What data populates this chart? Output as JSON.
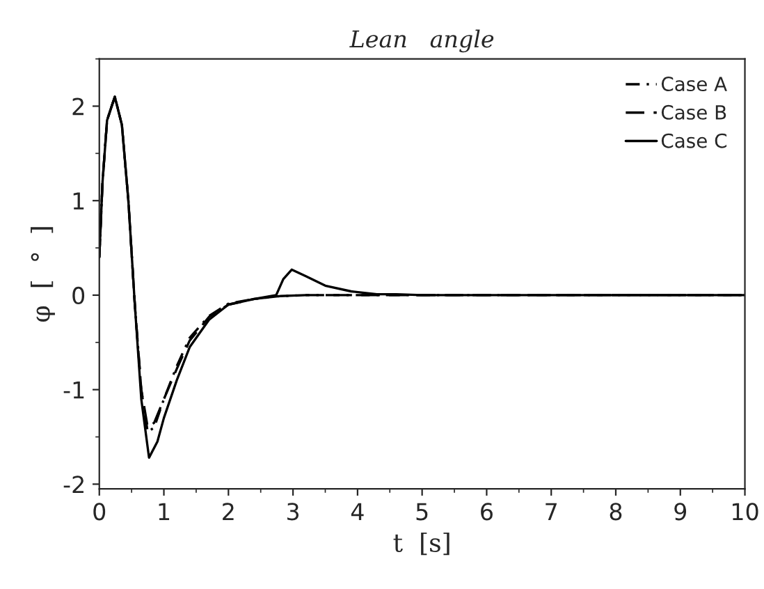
{
  "chart_data": {
    "type": "line",
    "title": "Lean   angle",
    "xlabel": "t  [s]",
    "ylabel": "φ  [  °  ]",
    "xlim": [
      0,
      10
    ],
    "ylim": [
      -2.05,
      2.5
    ],
    "xticks": [
      0,
      1,
      2,
      3,
      4,
      5,
      6,
      7,
      8,
      9,
      10
    ],
    "yticks": [
      -2,
      -1,
      0,
      1,
      2
    ],
    "grid": false,
    "legend": "top right",
    "marker": "none",
    "series": [
      {
        "name": "Case A",
        "color": "#000000",
        "line_style": "dashdot",
        "x": [
          0,
          0.05,
          0.12,
          0.24,
          0.35,
          0.45,
          0.55,
          0.65,
          0.75,
          0.85,
          1.0,
          1.2,
          1.4,
          1.7,
          2.0,
          2.4,
          2.8,
          3.2,
          4,
          5,
          6,
          7,
          8,
          9,
          10
        ],
        "values": [
          0.4,
          1.2,
          1.85,
          2.1,
          1.8,
          1.0,
          -0.1,
          -1.0,
          -1.45,
          -1.4,
          -1.1,
          -0.75,
          -0.45,
          -0.22,
          -0.09,
          -0.04,
          -0.01,
          0,
          0,
          0,
          0,
          0,
          0,
          0,
          0
        ]
      },
      {
        "name": "Case B",
        "color": "#000000",
        "line_style": "dashed",
        "x": [
          0,
          0.05,
          0.12,
          0.24,
          0.35,
          0.45,
          0.55,
          0.65,
          0.75,
          0.85,
          1.0,
          1.2,
          1.4,
          1.7,
          2.0,
          2.4,
          2.8,
          3.2,
          4,
          5,
          6,
          7,
          8,
          9,
          10
        ],
        "values": [
          0.4,
          1.2,
          1.85,
          2.1,
          1.8,
          1.0,
          -0.1,
          -1.0,
          -1.4,
          -1.35,
          -1.1,
          -0.78,
          -0.48,
          -0.23,
          -0.1,
          -0.04,
          -0.01,
          0,
          0,
          0,
          0,
          0,
          0,
          0,
          0
        ]
      },
      {
        "name": "Case C",
        "color": "#000000",
        "line_style": "solid",
        "x": [
          0,
          0.05,
          0.12,
          0.24,
          0.35,
          0.45,
          0.55,
          0.65,
          0.77,
          0.9,
          1.0,
          1.2,
          1.4,
          1.7,
          2.0,
          2.4,
          2.74,
          2.85,
          2.98,
          3.2,
          3.5,
          3.9,
          4.3,
          4.6,
          5,
          6,
          7,
          8,
          9,
          10
        ],
        "values": [
          0.4,
          1.2,
          1.85,
          2.1,
          1.8,
          1.0,
          -0.1,
          -1.1,
          -1.72,
          -1.55,
          -1.3,
          -0.9,
          -0.55,
          -0.26,
          -0.1,
          -0.04,
          0,
          0.17,
          0.27,
          0.2,
          0.1,
          0.04,
          0.01,
          0.01,
          0,
          0,
          0,
          0,
          0,
          0
        ]
      }
    ]
  }
}
